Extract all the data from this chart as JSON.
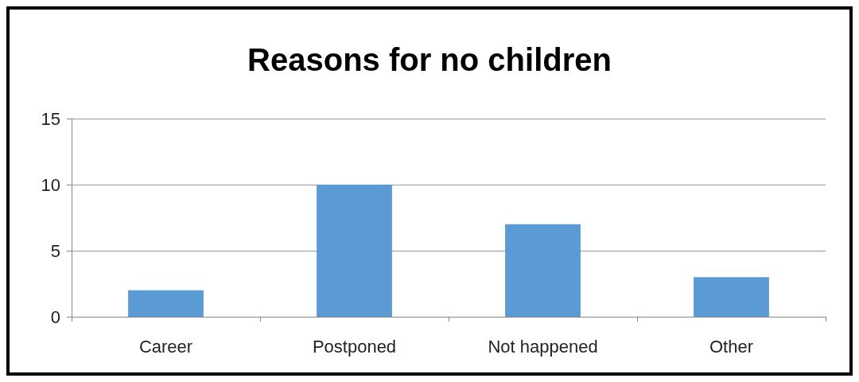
{
  "chart_data": {
    "type": "bar",
    "title": "Reasons for no children",
    "categories": [
      "Career",
      "Postponed",
      "Not happened",
      "Other"
    ],
    "values": [
      2,
      10,
      7,
      3
    ],
    "color": "#5b9bd5",
    "ylim": [
      0,
      15
    ],
    "yticks": [
      0,
      5,
      10,
      15
    ],
    "grid": "y"
  }
}
